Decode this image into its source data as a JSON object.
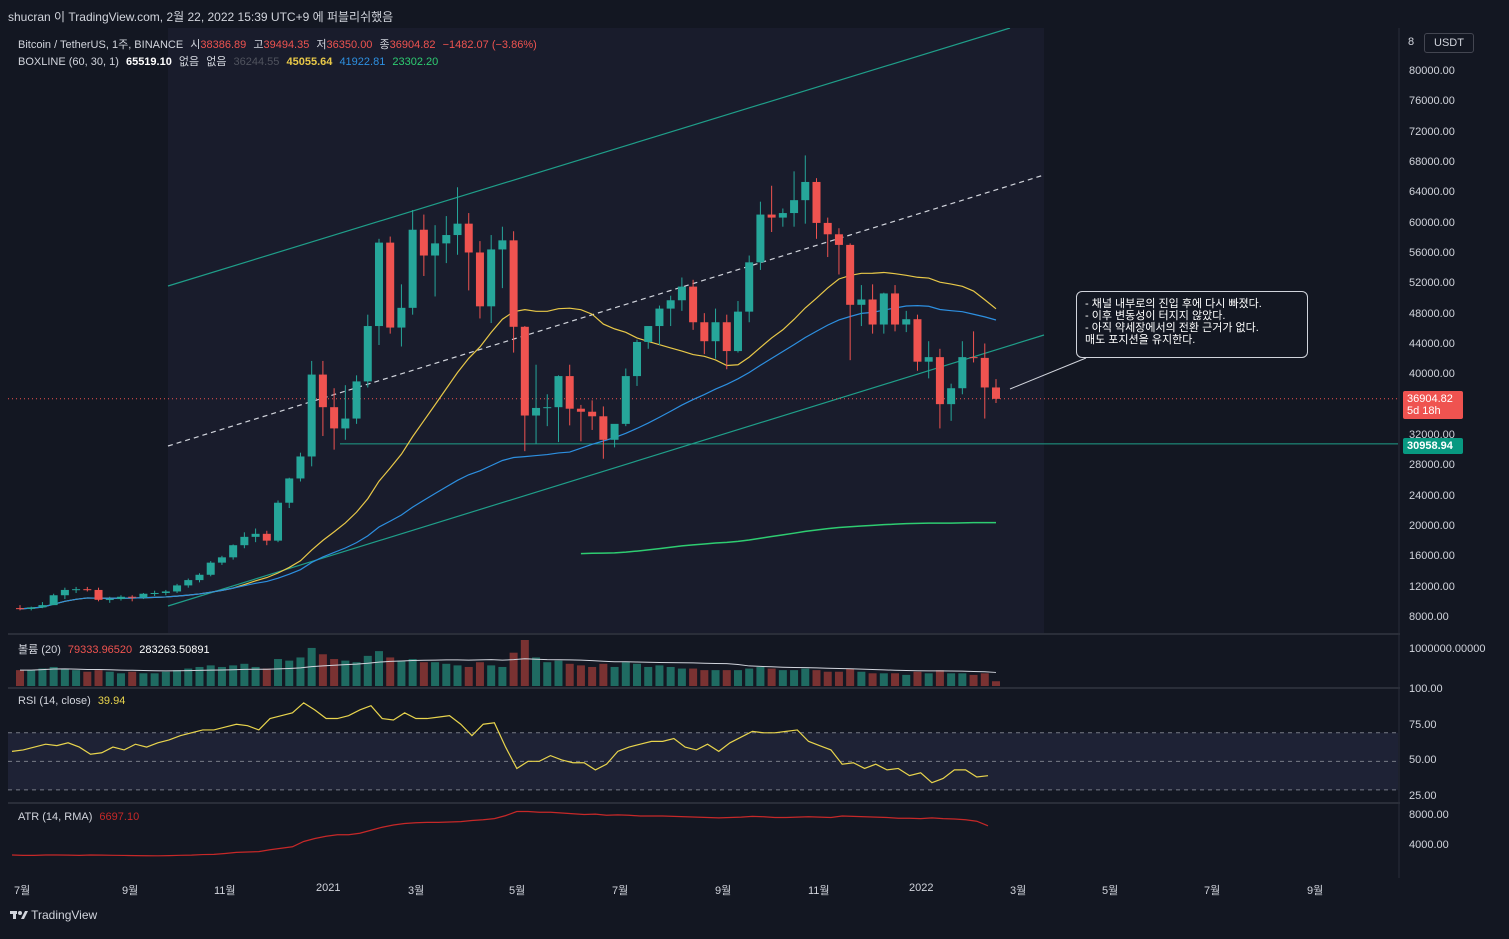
{
  "header": {
    "title": "shucran 이 TradingView.com, 2월 22, 2022 15:39 UTC+9 에 퍼블리쉬했음"
  },
  "legend_main": {
    "symbol": "Bitcoin / TetherUS, 1주, BINANCE",
    "open_label": "시",
    "open": "38386.89",
    "high_label": "고",
    "high": "39494.35",
    "low_label": "저",
    "low": "36350.00",
    "close_label": "종",
    "close": "36904.82",
    "change": "−1482.07 (−3.86%)"
  },
  "legend_boxline": {
    "name": "BOXLINE (60, 30, 1)",
    "v1": "65519.10",
    "none1": "없음",
    "none2": "없음",
    "v2": "36244.55",
    "v3": "45055.64",
    "v4": "41922.81",
    "v5": "23302.20"
  },
  "legend_volume": {
    "name": "볼륨 (20)",
    "v1": "79333.96520",
    "v2": "283263.50891"
  },
  "legend_rsi": {
    "name": "RSI (14, close)",
    "value": "39.94"
  },
  "legend_atr": {
    "name": "ATR (14, RMA)",
    "value": "6697.10"
  },
  "price_axis": {
    "currency_button": "USDT",
    "top_cut_label": "8",
    "ticks": [
      "80000.00",
      "76000.00",
      "72000.00",
      "68000.00",
      "64000.00",
      "60000.00",
      "56000.00",
      "52000.00",
      "48000.00",
      "44000.00",
      "40000.00",
      "32000.00",
      "28000.00",
      "24000.00",
      "20000.00",
      "16000.00",
      "12000.00",
      "8000.00"
    ],
    "last_price": "36904.82",
    "countdown": "5d 18h",
    "level_label": "30958.94"
  },
  "volume_axis": {
    "ticks": [
      "1000000.00000"
    ]
  },
  "rsi_axis": {
    "ticks": [
      "100.00",
      "75.00",
      "50.00",
      "25.00"
    ]
  },
  "atr_axis": {
    "ticks": [
      "8000.00",
      "4000.00"
    ]
  },
  "time_axis": {
    "ticks": [
      "7월",
      "9월",
      "11월",
      "2021",
      "3월",
      "5월",
      "7월",
      "9월",
      "11월",
      "2022",
      "3월",
      "5월",
      "7월",
      "9월"
    ]
  },
  "callout": {
    "lines": [
      "- 채널 내부로의 진입 후에 다시 빠졌다.",
      "- 이후 변동성이 터지지 않았다.",
      "- 아직 약세장에서의 전환 근거가 없다.",
      "매도 포지션을 유지한다."
    ]
  },
  "footer": {
    "brand": "TradingView"
  },
  "colors": {
    "background": "#131722",
    "up": "#26a69a",
    "down": "#ef5350",
    "channel": "#1f9e89",
    "ma_yellow": "#e8c848",
    "ma_blue": "#2d8fe0",
    "ma_green": "#2ecc71",
    "level": "#1f9e89",
    "rsi": "#e8d44d",
    "atr": "#c62828"
  },
  "chart_data": {
    "type": "candlestick",
    "candles_per_week": "1주",
    "ohlc": [
      [
        9300,
        9700,
        9000,
        9200
      ],
      [
        9200,
        9500,
        9000,
        9400
      ],
      [
        9400,
        10100,
        9300,
        9700
      ],
      [
        9700,
        11200,
        9700,
        11000
      ],
      [
        11000,
        12000,
        10500,
        11700
      ],
      [
        11700,
        12100,
        11300,
        11800
      ],
      [
        11800,
        12100,
        11500,
        11700
      ],
      [
        11700,
        12000,
        10200,
        10400
      ],
      [
        10400,
        10800,
        10000,
        10500
      ],
      [
        10500,
        11000,
        10300,
        10800
      ],
      [
        10800,
        11000,
        10200,
        10700
      ],
      [
        10700,
        11300,
        10500,
        11200
      ],
      [
        11200,
        11600,
        10900,
        11300
      ],
      [
        11300,
        11700,
        11000,
        11500
      ],
      [
        11500,
        12500,
        11300,
        12300
      ],
      [
        12300,
        13200,
        12000,
        13000
      ],
      [
        13000,
        13900,
        12700,
        13700
      ],
      [
        13700,
        15500,
        13500,
        15300
      ],
      [
        15300,
        16200,
        15000,
        16000
      ],
      [
        16000,
        17700,
        15700,
        17600
      ],
      [
        17600,
        19300,
        17200,
        18700
      ],
      [
        18700,
        19800,
        18000,
        19100
      ],
      [
        19100,
        19500,
        17600,
        18200
      ],
      [
        18200,
        23500,
        18000,
        23200
      ],
      [
        23200,
        26500,
        22500,
        26400
      ],
      [
        26400,
        29800,
        26000,
        29300
      ],
      [
        29300,
        41900,
        28000,
        40100
      ],
      [
        40100,
        41900,
        32000,
        35800
      ],
      [
        35800,
        38300,
        30200,
        33000
      ],
      [
        33000,
        38700,
        31500,
        34300
      ],
      [
        34300,
        40000,
        33600,
        39200
      ],
      [
        39200,
        48000,
        38400,
        46500
      ],
      [
        46500,
        58000,
        44000,
        57500
      ],
      [
        57500,
        58300,
        45500,
        46300
      ],
      [
        46300,
        52000,
        43800,
        48900
      ],
      [
        48900,
        61800,
        48000,
        59200
      ],
      [
        59200,
        61200,
        53100,
        55800
      ],
      [
        55800,
        59800,
        50400,
        57400
      ],
      [
        57400,
        61000,
        54800,
        58500
      ],
      [
        58500,
        64800,
        55900,
        60000
      ],
      [
        60000,
        61400,
        51200,
        56200
      ],
      [
        56200,
        57700,
        47500,
        49100
      ],
      [
        49100,
        58500,
        46900,
        56600
      ],
      [
        56600,
        59600,
        51500,
        57800
      ],
      [
        57800,
        59000,
        43000,
        46400
      ],
      [
        46400,
        46500,
        30000,
        34700
      ],
      [
        34700,
        41400,
        31000,
        35700
      ],
      [
        35700,
        37500,
        33300,
        35800
      ],
      [
        35800,
        40000,
        31200,
        39900
      ],
      [
        39900,
        41400,
        33400,
        35600
      ],
      [
        35600,
        36100,
        31300,
        35200
      ],
      [
        35200,
        36700,
        32800,
        34600
      ],
      [
        34600,
        35900,
        29000,
        31500
      ],
      [
        31500,
        33500,
        30500,
        33600
      ],
      [
        33600,
        40900,
        33300,
        39900
      ],
      [
        39900,
        44700,
        38600,
        44400
      ],
      [
        44400,
        46200,
        43500,
        46500
      ],
      [
        46500,
        49200,
        44000,
        48800
      ],
      [
        48800,
        50500,
        46500,
        49900
      ],
      [
        49900,
        52900,
        48500,
        51700
      ],
      [
        51700,
        52600,
        46000,
        47000
      ],
      [
        47000,
        48200,
        42800,
        44500
      ],
      [
        44500,
        48800,
        42200,
        47000
      ],
      [
        47000,
        48000,
        40800,
        43200
      ],
      [
        43200,
        49800,
        43000,
        48400
      ],
      [
        48400,
        55800,
        47000,
        54900
      ],
      [
        54900,
        62900,
        53900,
        61200
      ],
      [
        61200,
        65000,
        58900,
        60800
      ],
      [
        60800,
        62000,
        59600,
        61400
      ],
      [
        61400,
        66900,
        59600,
        63100
      ],
      [
        63100,
        69000,
        60000,
        65500
      ],
      [
        65500,
        66000,
        58000,
        60100
      ],
      [
        60100,
        60800,
        55600,
        58600
      ],
      [
        58600,
        59400,
        53300,
        57200
      ],
      [
        57200,
        57400,
        42000,
        49300
      ],
      [
        49300,
        51900,
        46500,
        50000
      ],
      [
        50000,
        52000,
        45500,
        46700
      ],
      [
        46700,
        50900,
        45500,
        50800
      ],
      [
        50800,
        51900,
        45800,
        46700
      ],
      [
        46700,
        48500,
        45700,
        47400
      ],
      [
        47400,
        48000,
        40600,
        41800
      ],
      [
        41800,
        44500,
        39600,
        42400
      ],
      [
        42400,
        43500,
        33000,
        36200
      ],
      [
        36200,
        38900,
        34000,
        38300
      ],
      [
        38300,
        44500,
        37500,
        42400
      ],
      [
        42400,
        45800,
        41700,
        42300
      ],
      [
        42300,
        44200,
        34300,
        38400
      ],
      [
        38400,
        39500,
        36350,
        36900
      ]
    ],
    "last_price": 36904.82,
    "horizontal_level": 30958.94,
    "volume": [
      1,
      1,
      1.1,
      1.2,
      1.1,
      1.0,
      0.9,
      1.0,
      0.9,
      0.8,
      0.9,
      0.8,
      0.8,
      0.9,
      1.0,
      1.1,
      1.2,
      1.3,
      1.2,
      1.3,
      1.4,
      1.2,
      1.1,
      1.7,
      1.6,
      1.8,
      2.4,
      2.0,
      1.7,
      1.6,
      1.5,
      1.9,
      2.2,
      1.8,
      1.6,
      1.7,
      1.5,
      1.5,
      1.4,
      1.3,
      1.2,
      1.5,
      1.3,
      1.2,
      2.1,
      2.9,
      1.8,
      1.5,
      1.6,
      1.4,
      1.3,
      1.2,
      1.4,
      1.2,
      1.5,
      1.4,
      1.2,
      1.3,
      1.2,
      1.1,
      1.1,
      1.0,
      1.0,
      1.0,
      1.0,
      1.1,
      1.2,
      1.1,
      1.0,
      1.0,
      1.1,
      1.0,
      0.9,
      0.9,
      1.1,
      0.9,
      0.8,
      0.8,
      0.8,
      0.7,
      0.9,
      0.8,
      1.0,
      0.8,
      0.8,
      0.7,
      0.8,
      0.3
    ],
    "rsi": [
      57,
      58,
      60,
      62,
      61,
      63,
      60,
      55,
      56,
      60,
      58,
      62,
      60,
      63,
      65,
      68,
      70,
      72,
      72,
      74,
      76,
      75,
      72,
      80,
      82,
      84,
      91,
      86,
      80,
      80,
      82,
      86,
      89,
      80,
      79,
      84,
      80,
      80,
      81,
      82,
      76,
      68,
      76,
      77,
      60,
      45,
      50,
      50,
      54,
      51,
      49,
      49,
      44,
      48,
      57,
      60,
      62,
      64,
      64,
      66,
      60,
      58,
      62,
      57,
      63,
      67,
      71,
      70,
      70,
      71,
      72,
      64,
      61,
      58,
      48,
      49,
      45,
      48,
      44,
      45,
      40,
      42,
      35,
      38,
      44,
      44,
      39,
      39.94
    ],
    "atr": [
      2800,
      2750,
      2750,
      2800,
      2800,
      2780,
      2750,
      2800,
      2780,
      2760,
      2740,
      2720,
      2700,
      2690,
      2720,
      2760,
      2780,
      2860,
      2880,
      3000,
      3150,
      3200,
      3250,
      3500,
      3700,
      3900,
      4600,
      5000,
      5300,
      5500,
      5500,
      5700,
      6100,
      6500,
      6800,
      7000,
      7100,
      7150,
      7150,
      7200,
      7250,
      7400,
      7500,
      7650,
      8050,
      8600,
      8600,
      8500,
      8500,
      8400,
      8300,
      8200,
      8250,
      8100,
      8150,
      8100,
      8000,
      8000,
      8000,
      7950,
      7900,
      7850,
      7800,
      7750,
      7800,
      7850,
      7950,
      7900,
      7800,
      7800,
      7850,
      7900,
      7850,
      7800,
      8000,
      7950,
      7900,
      7850,
      7800,
      7700,
      7700,
      7650,
      7750,
      7650,
      7600,
      7500,
      7300,
      6697.1
    ],
    "rsi_bands": [
      70,
      50,
      30
    ],
    "price_range": [
      8000,
      84000
    ]
  }
}
